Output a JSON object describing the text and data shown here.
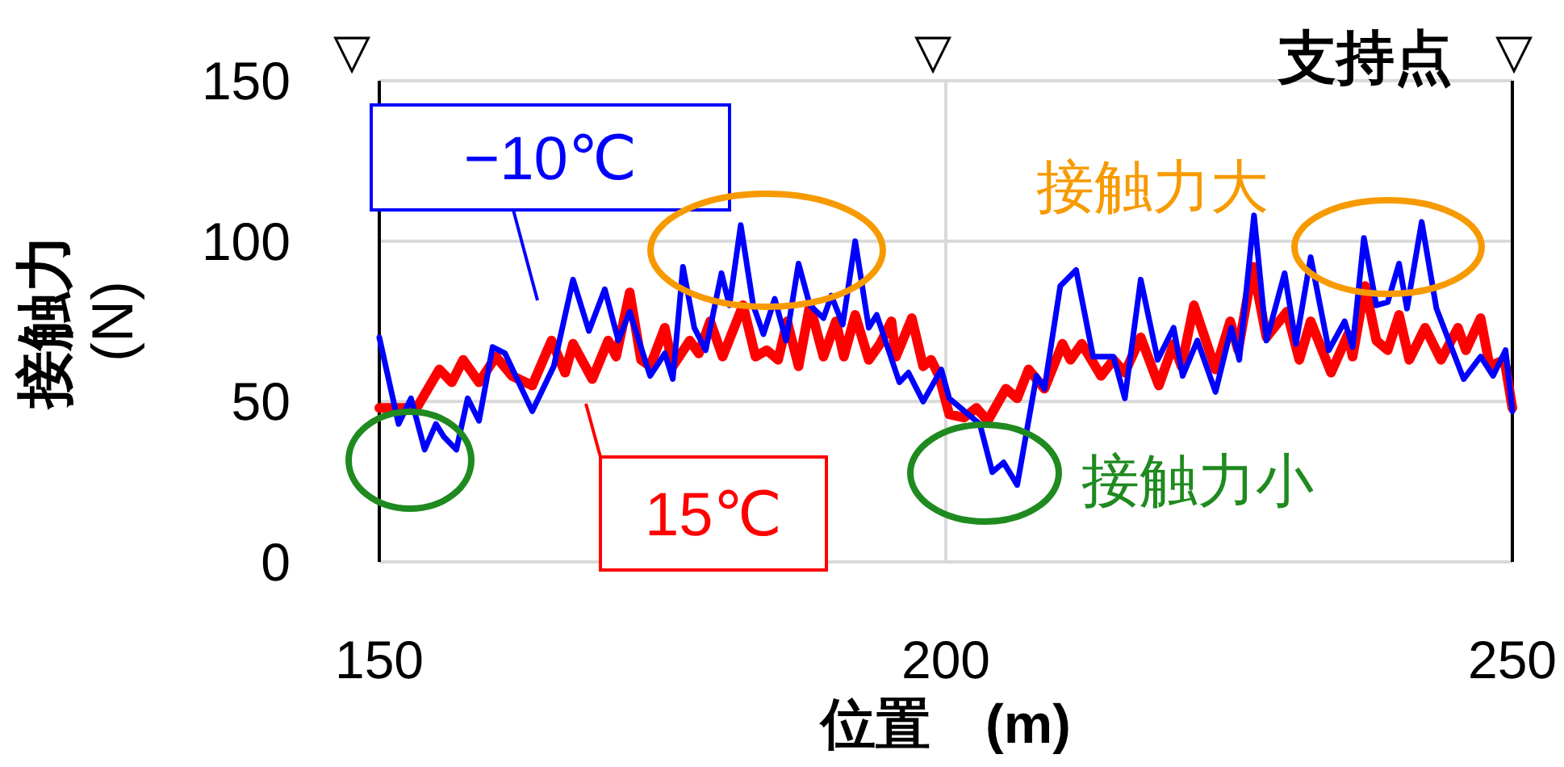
{
  "chart_data": {
    "type": "line",
    "xlabel": "位置　(m)",
    "ylabel": "接触力\n(N)",
    "xlim": [
      150,
      250
    ],
    "xticks": [
      150,
      200,
      250
    ],
    "ylim": [
      0,
      150
    ],
    "yticks": [
      0,
      50,
      100,
      150
    ],
    "grid": true,
    "legend": "bottom left",
    "series": [
      {
        "name": "15℃",
        "color": "#ff0000",
        "x": [
          150,
          151.1,
          153.3,
          155.3,
          156.4,
          157.4,
          158.8,
          160.3,
          161.7,
          163.5,
          165.2,
          166.4,
          167.1,
          168.8,
          170.2,
          170.9,
          172.1,
          173.1,
          173.9,
          175.2,
          175.9,
          177.4,
          178.2,
          179.2,
          180.3,
          182.1,
          183.2,
          184.2,
          185.2,
          186,
          187,
          188,
          189.2,
          190.3,
          191,
          192,
          193.2,
          194.2,
          195.2,
          195.6,
          197,
          198,
          198.7,
          199.4,
          200.3,
          201.6,
          202.7,
          203.7,
          205.3,
          206.3,
          207.3,
          208.7,
          210.3,
          211,
          212,
          213.7,
          214.8,
          215.8,
          217.2,
          218.8,
          220.1,
          220.8,
          221.9,
          223.8,
          225.1,
          225.8,
          227.1,
          228.3,
          230.1,
          231.2,
          232.2,
          234,
          235.5,
          235.9,
          237,
          238,
          239,
          240,
          240.9,
          242.3,
          243.7,
          245.2,
          245.9,
          247.2,
          248,
          249.3,
          250
        ],
        "values": [
          48,
          48,
          48,
          60,
          56,
          63,
          56,
          64,
          58,
          55,
          69,
          59,
          68,
          57,
          69,
          64,
          84,
          63,
          61,
          73,
          61,
          69,
          65,
          75,
          64,
          80,
          64,
          66,
          63,
          75,
          61,
          80,
          64,
          75,
          64,
          77,
          63,
          68,
          75,
          64,
          76,
          61,
          63,
          58,
          46,
          45,
          48,
          44,
          54,
          51,
          60,
          54,
          68,
          63,
          68,
          58,
          63,
          59,
          70,
          55,
          68,
          61,
          80,
          60,
          75,
          66,
          92,
          70,
          78,
          63,
          75,
          59,
          71,
          64,
          86,
          69,
          66,
          77,
          63,
          73,
          63,
          73,
          66,
          76,
          61,
          63,
          48
        ]
      },
      {
        "name": "−10℃",
        "color": "#0000ff",
        "x": [
          150,
          151.7,
          152.8,
          154,
          155,
          155.7,
          156.8,
          157.8,
          158.8,
          160,
          161.1,
          163.5,
          165.4,
          167.1,
          168.5,
          169.9,
          171.1,
          172.1,
          173.9,
          175.2,
          175.9,
          176.8,
          177.8,
          178.8,
          180.2,
          180.9,
          181.9,
          183,
          183.9,
          184.9,
          185.9,
          187,
          188,
          189.2,
          189.9,
          190.9,
          192,
          193.2,
          193.9,
          195.9,
          196.7,
          198,
          199.6,
          200.3,
          201.3,
          203,
          204.1,
          205.1,
          206.3,
          208,
          208.7,
          210.1,
          211.5,
          213,
          214.8,
          215.8,
          217.2,
          218.7,
          220.1,
          220.9,
          222.2,
          223.8,
          225.2,
          225.9,
          227.2,
          228.3,
          229.9,
          230.9,
          232.2,
          233.8,
          235.2,
          235.9,
          236.9,
          238,
          239,
          240,
          240.7,
          242,
          243.3,
          245.7,
          247.2,
          248.3,
          249.4,
          250
        ],
        "values": [
          70,
          43,
          51,
          35,
          43,
          39,
          35,
          51,
          44,
          67,
          65,
          47,
          61,
          88,
          72,
          85,
          69,
          78,
          58,
          65,
          57,
          92,
          73,
          66,
          90,
          80,
          105,
          80,
          71,
          82,
          69,
          93,
          80,
          76,
          83,
          74,
          100,
          73,
          77,
          56,
          59,
          50,
          60,
          51,
          48,
          43,
          28,
          31,
          24,
          58,
          54,
          86,
          91,
          64,
          64,
          51,
          88,
          63,
          73,
          58,
          69,
          53,
          73,
          63,
          108,
          69,
          90,
          68,
          95,
          66,
          75,
          67,
          101,
          80,
          81,
          93,
          79,
          106,
          79,
          57,
          64,
          58,
          66,
          47
        ]
      }
    ],
    "annotations": [
      "支持点",
      "接触力大",
      "接触力小",
      "▽",
      "▽",
      "▽"
    ]
  }
}
